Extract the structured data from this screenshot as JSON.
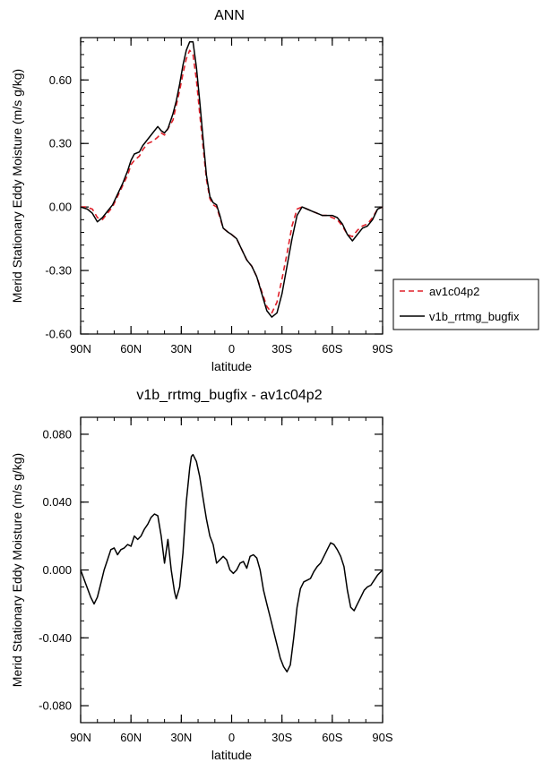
{
  "figure": {
    "top_title": "ANN",
    "bottom_title": "v1b_rrtmg_bugfix - av1c04p2"
  },
  "legend": {
    "entries": [
      {
        "name": "av1c04p2",
        "color": "#e0202a",
        "dash": true
      },
      {
        "name": "v1b_rrtmg_bugfix",
        "color": "#000000",
        "dash": false
      }
    ]
  },
  "chart_data": [
    {
      "type": "line",
      "title": "ANN",
      "xlabel": "latitude",
      "ylabel": "Merid Stationary Eddy Moisture (m/s g/kg)",
      "xlim": [
        90,
        -90
      ],
      "ylim": [
        -0.6,
        0.8
      ],
      "x_ticks": [
        90,
        60,
        30,
        0,
        -30,
        -60,
        -90
      ],
      "x_tick_labels": [
        "90N",
        "60N",
        "30N",
        "0",
        "30S",
        "60S",
        "90S"
      ],
      "y_ticks": [
        -0.6,
        -0.3,
        0.0,
        0.3,
        0.6
      ],
      "y_tick_labels": [
        "-0.60",
        "-0.30",
        "0.00",
        "0.30",
        "0.60"
      ],
      "series": [
        {
          "name": "av1c04p2",
          "color": "#e0202a",
          "dash": true,
          "points": [
            [
              90,
              0.0
            ],
            [
              87,
              0.0
            ],
            [
              83,
              -0.01
            ],
            [
              80,
              -0.05
            ],
            [
              77,
              -0.06
            ],
            [
              74,
              -0.03
            ],
            [
              71,
              0.0
            ],
            [
              68,
              0.05
            ],
            [
              65,
              0.1
            ],
            [
              62,
              0.15
            ],
            [
              60,
              0.2
            ],
            [
              58,
              0.22
            ],
            [
              55,
              0.24
            ],
            [
              53,
              0.27
            ],
            [
              50,
              0.3
            ],
            [
              47,
              0.31
            ],
            [
              44,
              0.33
            ],
            [
              42,
              0.35
            ],
            [
              40,
              0.34
            ],
            [
              38,
              0.37
            ],
            [
              35,
              0.41
            ],
            [
              33,
              0.48
            ],
            [
              31,
              0.55
            ],
            [
              29,
              0.63
            ],
            [
              27,
              0.7
            ],
            [
              25,
              0.74
            ],
            [
              23,
              0.72
            ],
            [
              21,
              0.6
            ],
            [
              19,
              0.44
            ],
            [
              17,
              0.28
            ],
            [
              15,
              0.13
            ],
            [
              13,
              0.04
            ],
            [
              11,
              0.01
            ],
            [
              9,
              0.0
            ],
            [
              7,
              -0.05
            ],
            [
              5,
              -0.1
            ],
            [
              2,
              -0.12
            ],
            [
              0,
              -0.13
            ],
            [
              -3,
              -0.15
            ],
            [
              -6,
              -0.2
            ],
            [
              -9,
              -0.25
            ],
            [
              -12,
              -0.28
            ],
            [
              -15,
              -0.33
            ],
            [
              -18,
              -0.4
            ],
            [
              -21,
              -0.47
            ],
            [
              -24,
              -0.5
            ],
            [
              -27,
              -0.45
            ],
            [
              -30,
              -0.34
            ],
            [
              -33,
              -0.22
            ],
            [
              -36,
              -0.09
            ],
            [
              -39,
              -0.01
            ],
            [
              -42,
              0.0
            ],
            [
              -45,
              -0.01
            ],
            [
              -48,
              -0.02
            ],
            [
              -51,
              -0.03
            ],
            [
              -54,
              -0.04
            ],
            [
              -57,
              -0.04
            ],
            [
              -60,
              -0.05
            ],
            [
              -63,
              -0.06
            ],
            [
              -66,
              -0.09
            ],
            [
              -69,
              -0.13
            ],
            [
              -72,
              -0.14
            ],
            [
              -75,
              -0.11
            ],
            [
              -78,
              -0.09
            ],
            [
              -81,
              -0.08
            ],
            [
              -84,
              -0.05
            ],
            [
              -87,
              -0.01
            ],
            [
              -90,
              0.0
            ]
          ]
        },
        {
          "name": "v1b_rrtmg_bugfix",
          "color": "#000000",
          "dash": false,
          "points": [
            [
              90,
              0.0
            ],
            [
              86,
              -0.01
            ],
            [
              83,
              -0.03
            ],
            [
              80,
              -0.07
            ],
            [
              77,
              -0.05
            ],
            [
              74,
              -0.02
            ],
            [
              71,
              0.01
            ],
            [
              68,
              0.06
            ],
            [
              65,
              0.11
            ],
            [
              62,
              0.17
            ],
            [
              60,
              0.22
            ],
            [
              58,
              0.25
            ],
            [
              55,
              0.26
            ],
            [
              53,
              0.29
            ],
            [
              50,
              0.32
            ],
            [
              47,
              0.35
            ],
            [
              44,
              0.38
            ],
            [
              42,
              0.36
            ],
            [
              40,
              0.35
            ],
            [
              38,
              0.37
            ],
            [
              35,
              0.44
            ],
            [
              33,
              0.5
            ],
            [
              31,
              0.58
            ],
            [
              29,
              0.67
            ],
            [
              27,
              0.74
            ],
            [
              25,
              0.78
            ],
            [
              23,
              0.78
            ],
            [
              21,
              0.66
            ],
            [
              19,
              0.5
            ],
            [
              17,
              0.32
            ],
            [
              15,
              0.15
            ],
            [
              13,
              0.05
            ],
            [
              11,
              0.02
            ],
            [
              9,
              0.01
            ],
            [
              7,
              -0.04
            ],
            [
              5,
              -0.1
            ],
            [
              2,
              -0.12
            ],
            [
              0,
              -0.13
            ],
            [
              -3,
              -0.15
            ],
            [
              -6,
              -0.2
            ],
            [
              -9,
              -0.25
            ],
            [
              -12,
              -0.28
            ],
            [
              -15,
              -0.33
            ],
            [
              -18,
              -0.41
            ],
            [
              -21,
              -0.49
            ],
            [
              -24,
              -0.52
            ],
            [
              -27,
              -0.5
            ],
            [
              -30,
              -0.41
            ],
            [
              -33,
              -0.28
            ],
            [
              -36,
              -0.15
            ],
            [
              -39,
              -0.04
            ],
            [
              -42,
              0.0
            ],
            [
              -45,
              -0.01
            ],
            [
              -48,
              -0.02
            ],
            [
              -51,
              -0.03
            ],
            [
              -54,
              -0.04
            ],
            [
              -57,
              -0.04
            ],
            [
              -60,
              -0.04
            ],
            [
              -63,
              -0.05
            ],
            [
              -66,
              -0.08
            ],
            [
              -69,
              -0.13
            ],
            [
              -72,
              -0.16
            ],
            [
              -75,
              -0.13
            ],
            [
              -78,
              -0.1
            ],
            [
              -81,
              -0.09
            ],
            [
              -84,
              -0.06
            ],
            [
              -87,
              -0.01
            ],
            [
              -90,
              0.0
            ]
          ]
        }
      ]
    },
    {
      "type": "line",
      "title": "v1b_rrtmg_bugfix - av1c04p2",
      "xlabel": "latitude",
      "ylabel": "Merid Stationary Eddy Moisture (m/s g/kg)",
      "xlim": [
        90,
        -90
      ],
      "ylim": [
        -0.09,
        0.09
      ],
      "x_ticks": [
        90,
        60,
        30,
        0,
        -30,
        -60,
        -90
      ],
      "x_tick_labels": [
        "90N",
        "60N",
        "30N",
        "0",
        "30S",
        "60S",
        "90S"
      ],
      "y_ticks": [
        -0.08,
        -0.04,
        0.0,
        0.04,
        0.08
      ],
      "y_tick_labels": [
        "-0.080",
        "-0.040",
        "0.000",
        "0.040",
        "0.080"
      ],
      "series": [
        {
          "name": "v1b_rrtmg_bugfix - av1c04p2",
          "color": "#000000",
          "dash": false,
          "points": [
            [
              90,
              0.0
            ],
            [
              87,
              -0.008
            ],
            [
              84,
              -0.016
            ],
            [
              82,
              -0.02
            ],
            [
              80,
              -0.016
            ],
            [
              78,
              -0.008
            ],
            [
              76,
              0.0
            ],
            [
              74,
              0.006
            ],
            [
              72,
              0.012
            ],
            [
              70,
              0.013
            ],
            [
              68,
              0.009
            ],
            [
              66,
              0.012
            ],
            [
              64,
              0.013
            ],
            [
              62,
              0.015
            ],
            [
              60,
              0.014
            ],
            [
              58,
              0.02
            ],
            [
              56,
              0.018
            ],
            [
              54,
              0.02
            ],
            [
              52,
              0.024
            ],
            [
              50,
              0.027
            ],
            [
              48,
              0.031
            ],
            [
              46,
              0.033
            ],
            [
              44,
              0.032
            ],
            [
              42,
              0.02
            ],
            [
              40,
              0.004
            ],
            [
              38,
              0.018
            ],
            [
              36,
              0.0
            ],
            [
              34,
              -0.013
            ],
            [
              33,
              -0.017
            ],
            [
              31,
              -0.01
            ],
            [
              29,
              0.01
            ],
            [
              27,
              0.04
            ],
            [
              25,
              0.06
            ],
            [
              24,
              0.067
            ],
            [
              23,
              0.068
            ],
            [
              21,
              0.064
            ],
            [
              19,
              0.055
            ],
            [
              17,
              0.042
            ],
            [
              15,
              0.03
            ],
            [
              13,
              0.02
            ],
            [
              11,
              0.015
            ],
            [
              9,
              0.004
            ],
            [
              7,
              0.006
            ],
            [
              5,
              0.008
            ],
            [
              3,
              0.006
            ],
            [
              1,
              0.0
            ],
            [
              -1,
              -0.002
            ],
            [
              -3,
              0.0
            ],
            [
              -5,
              0.004
            ],
            [
              -7,
              0.005
            ],
            [
              -9,
              0.001
            ],
            [
              -11,
              0.008
            ],
            [
              -13,
              0.009
            ],
            [
              -15,
              0.007
            ],
            [
              -17,
              0.0
            ],
            [
              -19,
              -0.012
            ],
            [
              -21,
              -0.02
            ],
            [
              -23,
              -0.028
            ],
            [
              -25,
              -0.036
            ],
            [
              -27,
              -0.044
            ],
            [
              -29,
              -0.052
            ],
            [
              -31,
              -0.057
            ],
            [
              -33,
              -0.06
            ],
            [
              -35,
              -0.056
            ],
            [
              -37,
              -0.04
            ],
            [
              -39,
              -0.022
            ],
            [
              -41,
              -0.011
            ],
            [
              -43,
              -0.007
            ],
            [
              -45,
              -0.006
            ],
            [
              -47,
              -0.005
            ],
            [
              -49,
              -0.001
            ],
            [
              -51,
              0.002
            ],
            [
              -53,
              0.004
            ],
            [
              -55,
              0.008
            ],
            [
              -57,
              0.012
            ],
            [
              -59,
              0.016
            ],
            [
              -61,
              0.015
            ],
            [
              -63,
              0.012
            ],
            [
              -65,
              0.008
            ],
            [
              -67,
              0.002
            ],
            [
              -69,
              -0.012
            ],
            [
              -71,
              -0.022
            ],
            [
              -73,
              -0.024
            ],
            [
              -75,
              -0.02
            ],
            [
              -77,
              -0.016
            ],
            [
              -79,
              -0.012
            ],
            [
              -81,
              -0.01
            ],
            [
              -83,
              -0.009
            ],
            [
              -85,
              -0.006
            ],
            [
              -87,
              -0.003
            ],
            [
              -90,
              0.0
            ]
          ]
        }
      ]
    }
  ]
}
